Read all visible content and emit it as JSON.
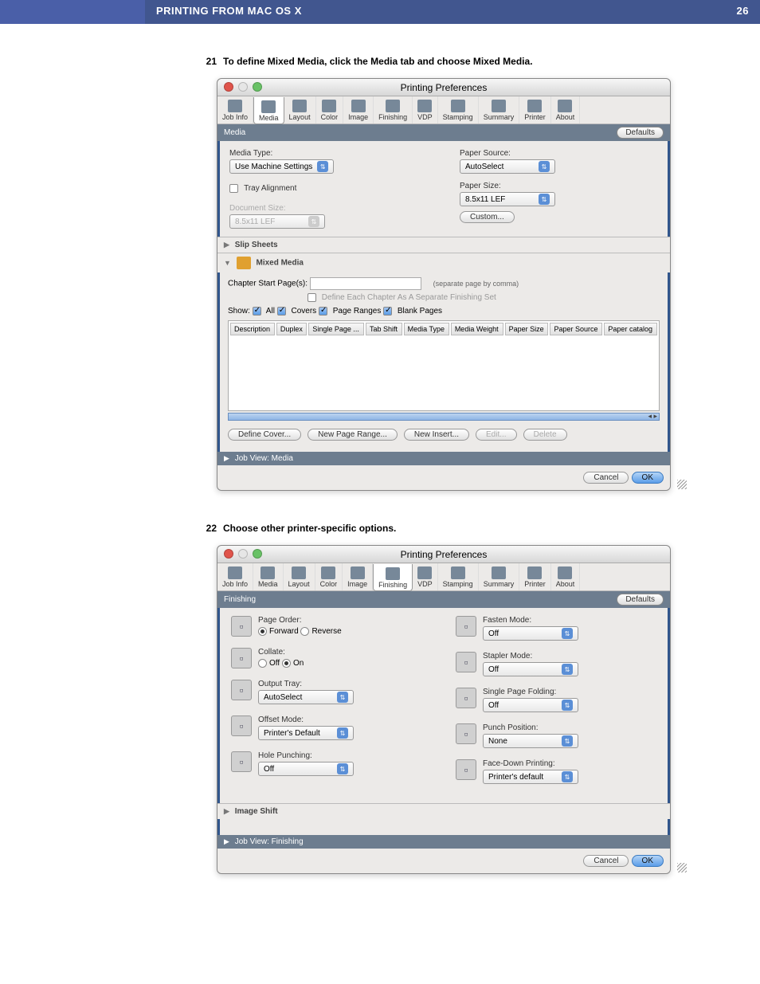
{
  "page": {
    "section_title": "PRINTING FROM MAC OS X",
    "page_number": "26"
  },
  "steps": [
    {
      "num": "21",
      "text": "To define Mixed Media, click the Media tab and choose Mixed Media."
    },
    {
      "num": "22",
      "text": "Choose other printer-specific options."
    }
  ],
  "traffic_colors": [
    "#e0544b",
    "#e6e6e6",
    "#69c266"
  ],
  "accent_blue": "#31568c",
  "window1": {
    "title": "Printing Preferences",
    "tabs": [
      "Job Info",
      "Media",
      "Layout",
      "Color",
      "Image",
      "Finishing",
      "VDP",
      "Stamping",
      "Summary",
      "Printer",
      "About"
    ],
    "active_tab_index": 1,
    "section_name": "Media",
    "defaults_btn": "Defaults",
    "media_type_label": "Media Type:",
    "media_type_value": "Use Machine Settings",
    "tray_alignment_label": "Tray Alignment",
    "document_size_label": "Document Size:",
    "document_size_value": "8.5x11 LEF",
    "paper_source_label": "Paper Source:",
    "paper_source_value": "AutoSelect",
    "paper_size_label": "Paper Size:",
    "paper_size_value": "8.5x11 LEF",
    "custom_btn": "Custom...",
    "slip_sheets": "Slip Sheets",
    "mixed_media": "Mixed Media",
    "chapter_start_label": "Chapter Start Page(s):",
    "chapter_hint": "(separate page by comma)",
    "define_each_label": "Define Each Chapter As A Separate Finishing Set",
    "show_label": "Show:",
    "show_opts": [
      "All",
      "Covers",
      "Page Ranges",
      "Blank Pages"
    ],
    "table_headers": [
      "Description",
      "Duplex",
      "Single Page ...",
      "Tab Shift",
      "Media Type",
      "Media Weight",
      "Paper Size",
      "Paper Source",
      "Paper catalog"
    ],
    "btns": {
      "define_cover": "Define Cover...",
      "new_page_range": "New Page Range...",
      "new_insert": "New Insert...",
      "edit": "Edit...",
      "delete": "Delete"
    },
    "job_view": "Job View: Media",
    "cancel": "Cancel",
    "ok": "OK"
  },
  "window2": {
    "title": "Printing Preferences",
    "tabs": [
      "Job Info",
      "Media",
      "Layout",
      "Color",
      "Image",
      "Finishing",
      "VDP",
      "Stamping",
      "Summary",
      "Printer",
      "About"
    ],
    "active_tab_index": 5,
    "section_name": "Finishing",
    "defaults_btn": "Defaults",
    "left": [
      {
        "label": "Page Order:",
        "type": "radio",
        "opts": [
          "Forward",
          "Reverse"
        ],
        "checked": 0
      },
      {
        "label": "Collate:",
        "type": "radio",
        "opts": [
          "Off",
          "On"
        ],
        "checked": 1
      },
      {
        "label": "Output Tray:",
        "type": "select",
        "value": "AutoSelect"
      },
      {
        "label": "Offset Mode:",
        "type": "select",
        "value": "Printer's Default"
      },
      {
        "label": "Hole Punching:",
        "type": "select",
        "value": "Off"
      }
    ],
    "right": [
      {
        "label": "Fasten Mode:",
        "value": "Off"
      },
      {
        "label": "Stapler Mode:",
        "value": "Off"
      },
      {
        "label": "Single Page Folding:",
        "value": "Off"
      },
      {
        "label": "Punch Position:",
        "value": "None"
      },
      {
        "label": "Face-Down Printing:",
        "value": "Printer's default"
      }
    ],
    "image_shift": "Image Shift",
    "job_view": "Job View: Finishing",
    "cancel": "Cancel",
    "ok": "OK"
  }
}
